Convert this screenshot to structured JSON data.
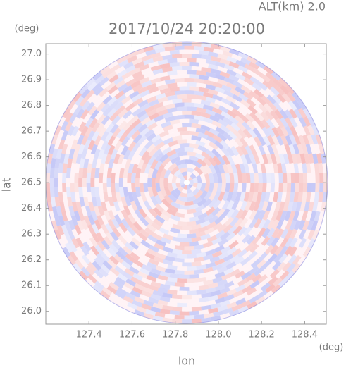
{
  "chart_data": {
    "type": "radar-ppi",
    "title": "2017/10/24 20:20:00",
    "subtitle": "ALT(km) 2.0",
    "x_label": "lon",
    "y_label": "lat",
    "x_unit": "(deg)",
    "y_unit": "(deg)",
    "xlim": [
      127.2,
      128.5
    ],
    "ylim": [
      25.95,
      27.04
    ],
    "xticks": [
      127.4,
      127.6,
      127.8,
      {
        "value": 128,
        "label": "128.0"
      },
      128.2,
      128.4
    ],
    "yticks": [
      {
        "value": 26,
        "label": "26.0"
      },
      26.1,
      26.2,
      26.3,
      26.4,
      26.5,
      26.6,
      26.7,
      26.8,
      26.9,
      {
        "value": 27,
        "label": "27.0"
      }
    ]
  }
}
